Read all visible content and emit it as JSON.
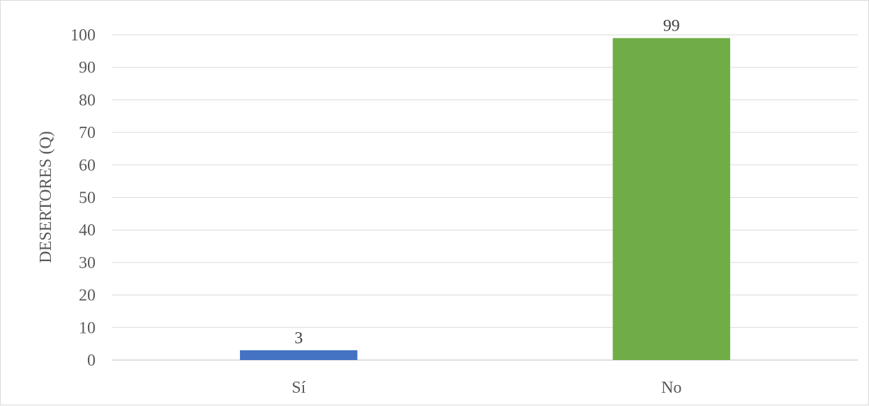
{
  "chart_data": {
    "type": "bar",
    "title": "",
    "xlabel": "",
    "ylabel": "DESERTORES (Q)",
    "categories": [
      "Sí",
      "No"
    ],
    "values": [
      3,
      99
    ],
    "data_labels": [
      "3",
      "99"
    ],
    "bar_colors": [
      "#4472c4",
      "#70ad47"
    ],
    "ylim": [
      0,
      100
    ],
    "yticks": [
      0,
      10,
      20,
      30,
      40,
      50,
      60,
      70,
      80,
      90,
      100
    ],
    "grid": true,
    "legend": "none",
    "colors": {
      "gridline": "#d9d9d9",
      "axis": "#bfbfbf",
      "tick_text": "#595959"
    }
  }
}
